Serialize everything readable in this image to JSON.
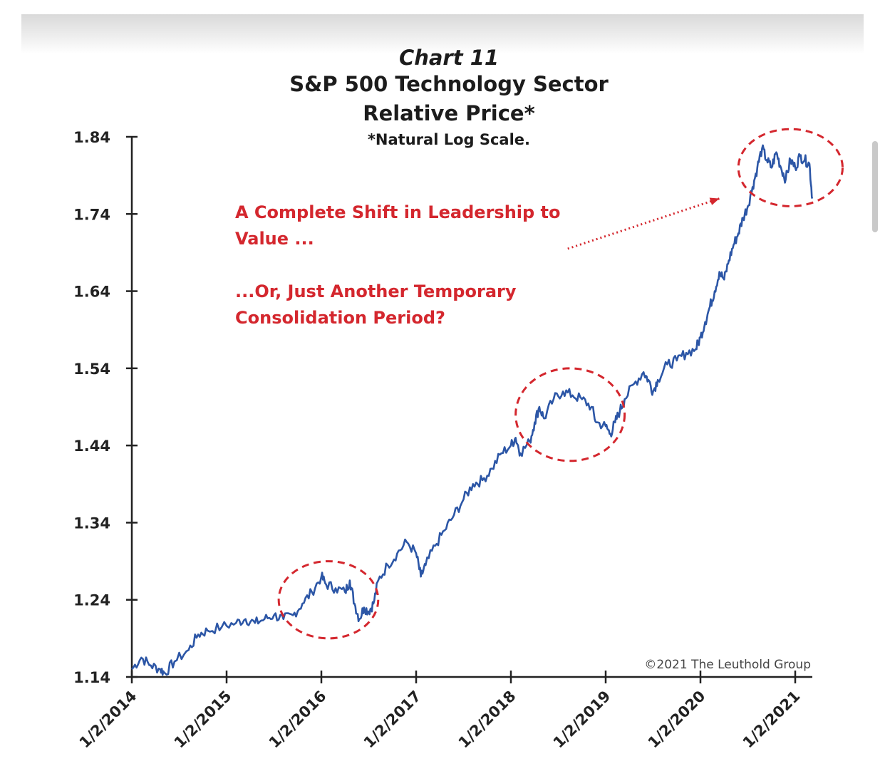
{
  "chart_data": {
    "type": "line",
    "title": "Chart 11",
    "subtitle_lines": [
      "S&P 500 Technology Sector",
      "Relative Price*"
    ],
    "note": "*Natural Log Scale.",
    "annotation_lines": [
      [
        "A Complete Shift in Leadership to",
        "Value ..."
      ],
      [
        "...Or, Just Another Temporary",
        "Consolidation Period?"
      ]
    ],
    "credit": "©2021 The Leuthold Group",
    "xlabel": "",
    "ylabel": "",
    "ylim": [
      1.14,
      1.84
    ],
    "y_ticks": [
      "1.84",
      "1.74",
      "1.64",
      "1.54",
      "1.44",
      "1.34",
      "1.24",
      "1.14"
    ],
    "x_ticks": [
      "1/2/2014",
      "1/2/2015",
      "1/2/2016",
      "1/2/2017",
      "1/2/2018",
      "1/2/2019",
      "1/2/2020",
      "1/2/2021"
    ],
    "x_range": [
      2014.0,
      2021.2
    ],
    "grid": false,
    "highlight_circles": [
      {
        "x_from": 2015.55,
        "x_to": 2016.6,
        "y_from": 1.19,
        "y_to": 1.29
      },
      {
        "x_from": 2018.05,
        "x_to": 2019.2,
        "y_from": 1.42,
        "y_to": 1.54
      },
      {
        "x_from": 2020.4,
        "x_to": 2021.5,
        "y_from": 1.75,
        "y_to": 1.85
      }
    ],
    "arrow": {
      "from": [
        2018.6,
        1.695
      ],
      "to": [
        2020.2,
        1.76
      ]
    },
    "series": [
      {
        "name": "",
        "color": "#2c56a6",
        "points": [
          [
            2014.0,
            1.15
          ],
          [
            2014.1,
            1.165
          ],
          [
            2014.2,
            1.155
          ],
          [
            2014.3,
            1.15
          ],
          [
            2014.35,
            1.145
          ],
          [
            2014.45,
            1.16
          ],
          [
            2014.6,
            1.175
          ],
          [
            2014.7,
            1.195
          ],
          [
            2014.8,
            1.2
          ],
          [
            2014.95,
            1.205
          ],
          [
            2015.1,
            1.21
          ],
          [
            2015.2,
            1.215
          ],
          [
            2015.3,
            1.21
          ],
          [
            2015.4,
            1.215
          ],
          [
            2015.5,
            1.22
          ],
          [
            2015.6,
            1.215
          ],
          [
            2015.7,
            1.22
          ],
          [
            2015.8,
            1.235
          ],
          [
            2015.9,
            1.25
          ],
          [
            2016.0,
            1.27
          ],
          [
            2016.05,
            1.26
          ],
          [
            2016.15,
            1.255
          ],
          [
            2016.25,
            1.25
          ],
          [
            2016.3,
            1.265
          ],
          [
            2016.35,
            1.235
          ],
          [
            2016.4,
            1.215
          ],
          [
            2016.45,
            1.23
          ],
          [
            2016.5,
            1.225
          ],
          [
            2016.55,
            1.235
          ],
          [
            2016.6,
            1.265
          ],
          [
            2016.7,
            1.285
          ],
          [
            2016.8,
            1.3
          ],
          [
            2016.9,
            1.315
          ],
          [
            2017.0,
            1.3
          ],
          [
            2017.05,
            1.27
          ],
          [
            2017.1,
            1.285
          ],
          [
            2017.2,
            1.31
          ],
          [
            2017.3,
            1.33
          ],
          [
            2017.4,
            1.35
          ],
          [
            2017.5,
            1.37
          ],
          [
            2017.6,
            1.39
          ],
          [
            2017.7,
            1.395
          ],
          [
            2017.8,
            1.41
          ],
          [
            2017.9,
            1.43
          ],
          [
            2018.0,
            1.44
          ],
          [
            2018.05,
            1.45
          ],
          [
            2018.1,
            1.43
          ],
          [
            2018.2,
            1.445
          ],
          [
            2018.25,
            1.47
          ],
          [
            2018.3,
            1.49
          ],
          [
            2018.35,
            1.475
          ],
          [
            2018.45,
            1.5
          ],
          [
            2018.55,
            1.51
          ],
          [
            2018.65,
            1.505
          ],
          [
            2018.75,
            1.5
          ],
          [
            2018.85,
            1.49
          ],
          [
            2018.9,
            1.47
          ],
          [
            2019.0,
            1.465
          ],
          [
            2019.05,
            1.455
          ],
          [
            2019.1,
            1.47
          ],
          [
            2019.15,
            1.485
          ],
          [
            2019.2,
            1.5
          ],
          [
            2019.3,
            1.52
          ],
          [
            2019.4,
            1.535
          ],
          [
            2019.45,
            1.525
          ],
          [
            2019.5,
            1.51
          ],
          [
            2019.55,
            1.525
          ],
          [
            2019.65,
            1.545
          ],
          [
            2019.75,
            1.55
          ],
          [
            2019.85,
            1.56
          ],
          [
            2019.95,
            1.565
          ],
          [
            2020.0,
            1.58
          ],
          [
            2020.05,
            1.6
          ],
          [
            2020.1,
            1.62
          ],
          [
            2020.15,
            1.64
          ],
          [
            2020.2,
            1.665
          ],
          [
            2020.25,
            1.655
          ],
          [
            2020.3,
            1.68
          ],
          [
            2020.35,
            1.7
          ],
          [
            2020.4,
            1.715
          ],
          [
            2020.45,
            1.735
          ],
          [
            2020.5,
            1.75
          ],
          [
            2020.55,
            1.775
          ],
          [
            2020.6,
            1.8
          ],
          [
            2020.65,
            1.825
          ],
          [
            2020.7,
            1.81
          ],
          [
            2020.75,
            1.8
          ],
          [
            2020.8,
            1.82
          ],
          [
            2020.85,
            1.8
          ],
          [
            2020.9,
            1.785
          ],
          [
            2020.95,
            1.81
          ],
          [
            2021.0,
            1.8
          ],
          [
            2021.05,
            1.815
          ],
          [
            2021.1,
            1.81
          ],
          [
            2021.15,
            1.805
          ],
          [
            2021.18,
            1.76
          ]
        ]
      }
    ]
  }
}
